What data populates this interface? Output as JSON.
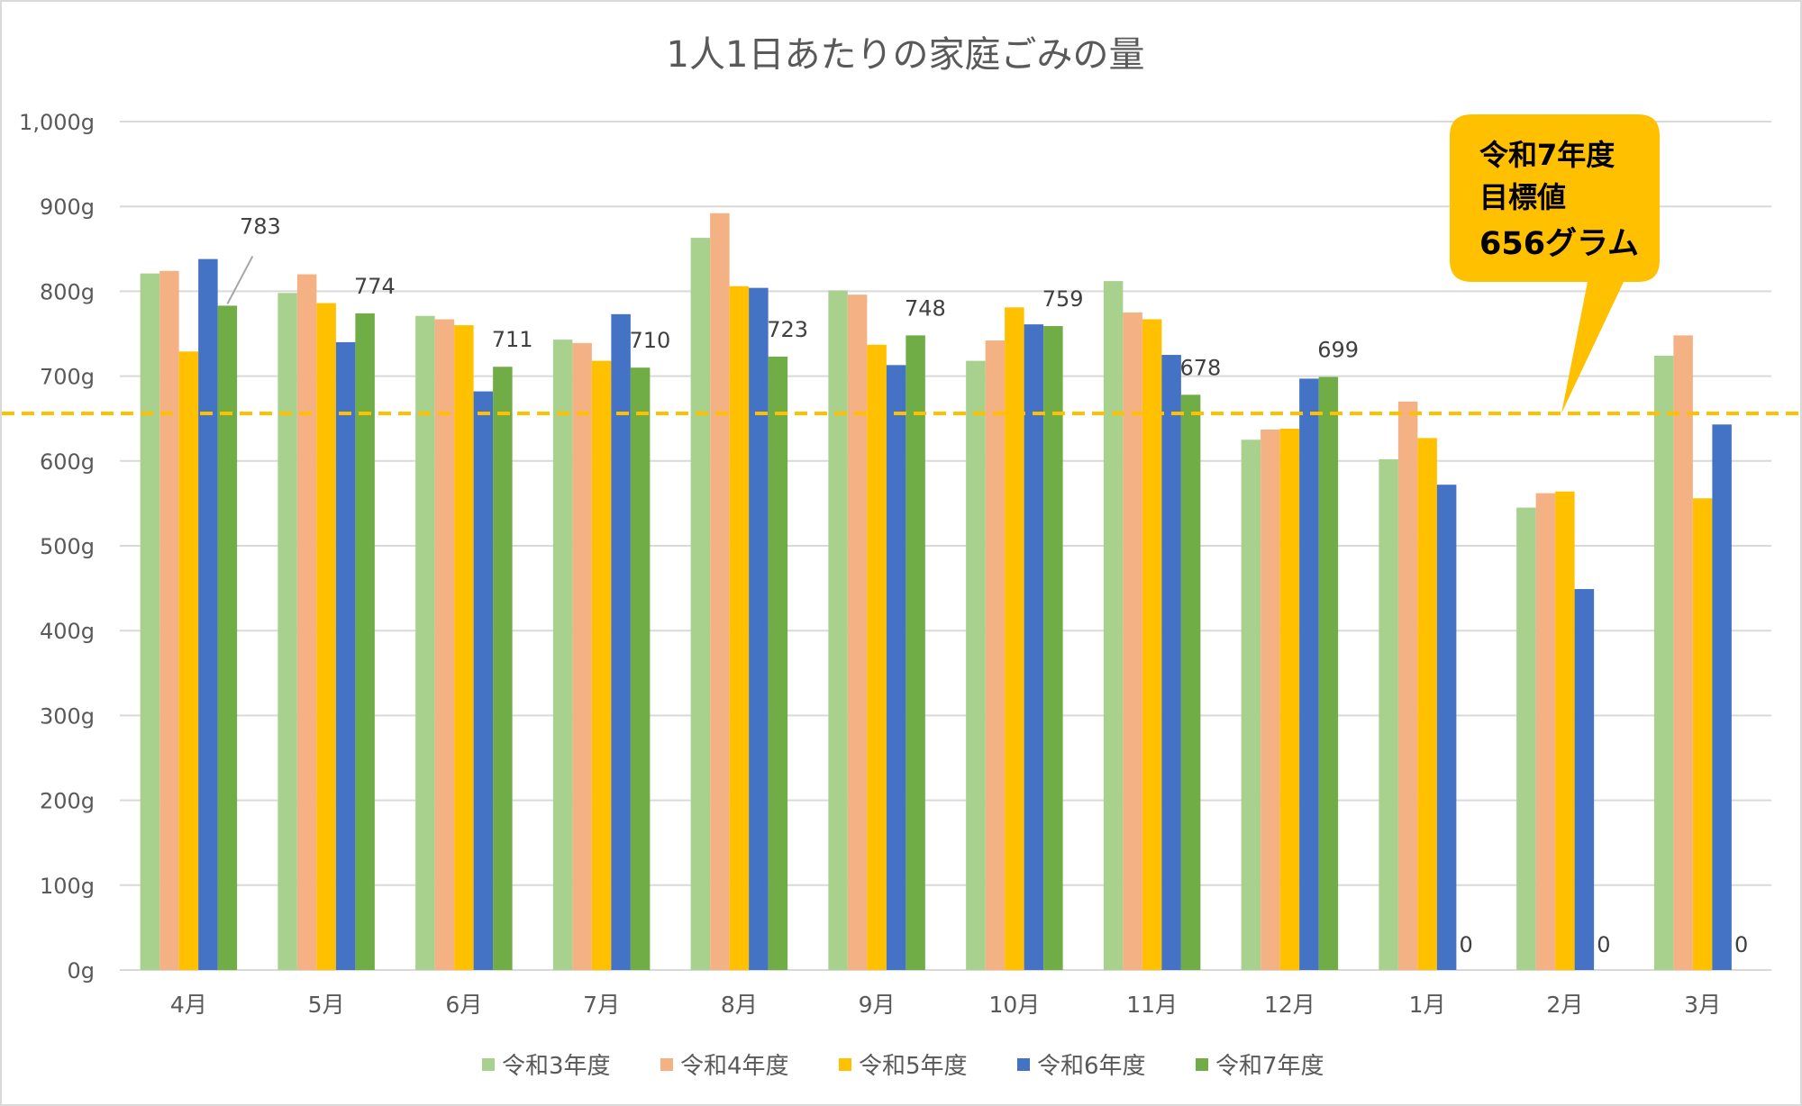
{
  "chart_data": {
    "type": "bar",
    "title": "1人1日あたりの家庭ごみの量",
    "xlabel": "",
    "ylabel": "",
    "ylim": [
      0,
      1000
    ],
    "yticks": [
      "0g",
      "100g",
      "200g",
      "300g",
      "400g",
      "500g",
      "600g",
      "700g",
      "800g",
      "900g",
      "1,000g"
    ],
    "grid": true,
    "legend_position": "bottom",
    "categories": [
      "4月",
      "5月",
      "6月",
      "7月",
      "8月",
      "9月",
      "10月",
      "11月",
      "12月",
      "1月",
      "2月",
      "3月"
    ],
    "series": [
      {
        "name": "令和3年度",
        "color": "#A9D18E",
        "values": [
          821,
          798,
          771,
          743,
          863,
          801,
          718,
          812,
          625,
          602,
          545,
          724
        ]
      },
      {
        "name": "令和4年度",
        "color": "#F4B183",
        "values": [
          824,
          820,
          767,
          739,
          892,
          796,
          742,
          775,
          637,
          670,
          562,
          748
        ]
      },
      {
        "name": "令和5年度",
        "color": "#FFC000",
        "values": [
          729,
          786,
          760,
          718,
          806,
          737,
          781,
          767,
          638,
          627,
          564,
          556
        ]
      },
      {
        "name": "令和6年度",
        "color": "#4472C4",
        "values": [
          838,
          740,
          682,
          773,
          804,
          713,
          761,
          725,
          697,
          572,
          449,
          643
        ]
      },
      {
        "name": "令和7年度",
        "color": "#70AD47",
        "values": [
          783,
          774,
          711,
          710,
          723,
          748,
          759,
          678,
          699,
          0,
          0,
          0
        ],
        "data_labels": [
          "783",
          "774",
          "711",
          "710",
          "723",
          "748",
          "759",
          "678",
          "699",
          "0",
          "0",
          "0"
        ]
      }
    ],
    "target_line": {
      "value": 656,
      "color": "#FFC000",
      "style": "dashed"
    },
    "callout": {
      "lines": [
        "令和7年度",
        "目標値",
        "656グラム"
      ],
      "color": "#FFC000"
    }
  }
}
